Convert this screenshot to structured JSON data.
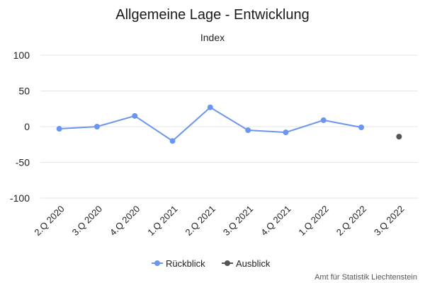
{
  "chart_data": {
    "type": "line",
    "title": "Allgemeine Lage - Entwicklung",
    "ylabel": "Index",
    "ylim": [
      -100,
      100
    ],
    "yticks": [
      100,
      50,
      0,
      -50,
      -100
    ],
    "grid": true,
    "legend_position": "bottom",
    "categories": [
      "2.Q 2020",
      "3.Q 2020",
      "4.Q 2020",
      "1.Q 2021",
      "2.Q 2021",
      "3.Q 2021",
      "4.Q 2021",
      "1.Q 2022",
      "2.Q 2022",
      "3.Q 2022"
    ],
    "series": [
      {
        "name": "Rückblick",
        "color": "#6a96f0",
        "values": [
          -3,
          0,
          15,
          -20,
          27,
          -5,
          -8,
          9,
          -1,
          null
        ]
      },
      {
        "name": "Ausblick",
        "color": "#555555",
        "values": [
          null,
          null,
          null,
          null,
          null,
          null,
          null,
          null,
          null,
          -14
        ]
      }
    ],
    "credits": "Amt für Statistik Liechtenstein"
  }
}
